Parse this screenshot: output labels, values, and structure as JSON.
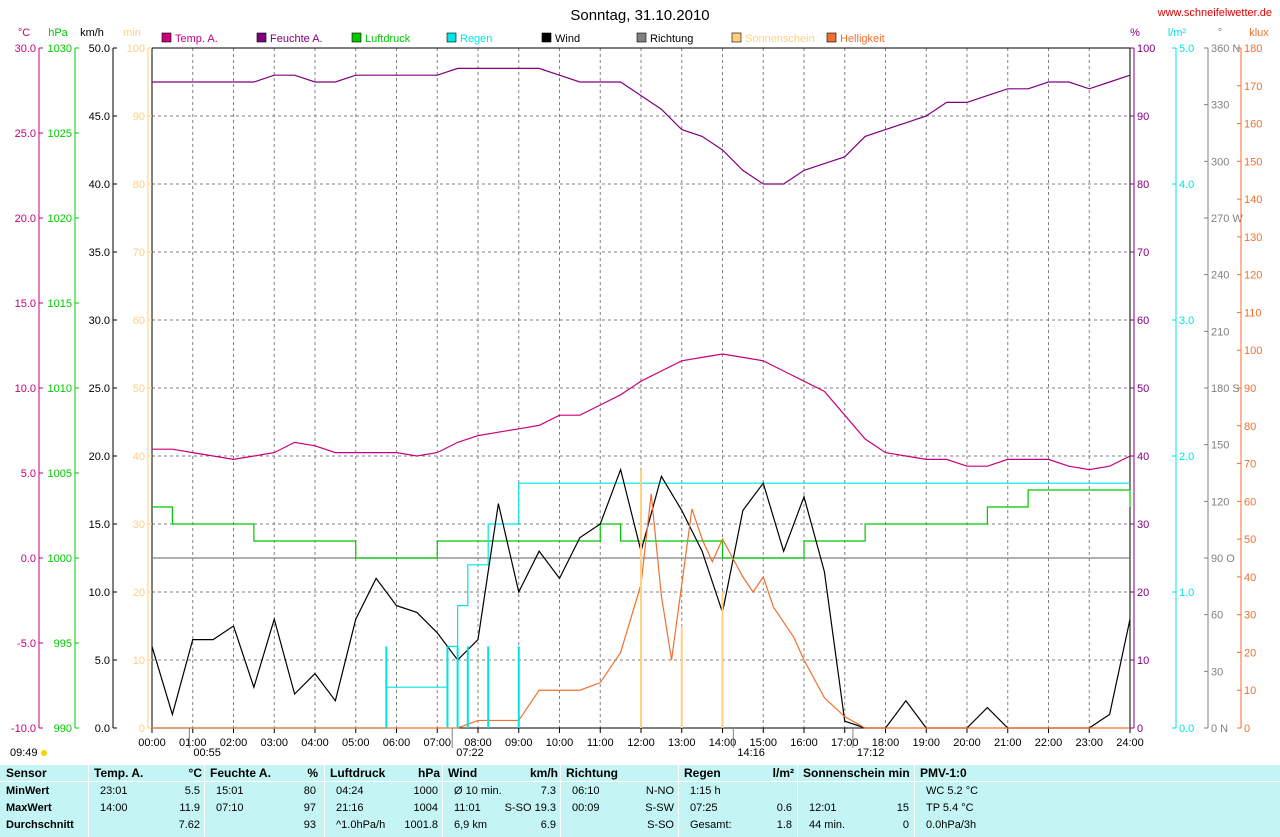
{
  "title": "Sonntag, 31.10.2010",
  "site": "www.schneifelwetter.de",
  "colors": {
    "temp": "#c8007c",
    "humidity": "#800080",
    "pressure": "#00c800",
    "rain": "#00e4e4",
    "wind": "#000000",
    "direction": "#808080",
    "sunshine": "#ffd080",
    "brightness": "#f07030",
    "grid": "#808080"
  },
  "axis_units": {
    "temp": "°C",
    "pressure": "hPa",
    "wind": "km/h",
    "sunmin": "min",
    "humidity": "%",
    "rain": "l/m²",
    "direction": "°",
    "brightness": "klux"
  },
  "legend": [
    {
      "label": "Temp. A.",
      "color": "#c8007c"
    },
    {
      "label": "Feuchte A.",
      "color": "#800080"
    },
    {
      "label": "Luftdruck",
      "color": "#00c800"
    },
    {
      "label": "Regen",
      "color": "#00e4e4"
    },
    {
      "label": "Wind",
      "color": "#000000"
    },
    {
      "label": "Richtung",
      "color": "#808080"
    },
    {
      "label": "Sonnenschein",
      "color": "#ffd080"
    },
    {
      "label": "Helligkeit",
      "color": "#f07030"
    }
  ],
  "time_markers": [
    {
      "label": "09:49",
      "pos": "left"
    },
    {
      "label": "00:55",
      "time": 0.917
    },
    {
      "label": "07:22",
      "time": 7.367
    },
    {
      "label": "14:16",
      "time": 14.267
    },
    {
      "label": "17:12",
      "time": 17.2
    }
  ],
  "chart_data": {
    "type": "line",
    "x_range": [
      0,
      24
    ],
    "x_ticks": [
      "00:00",
      "01:00",
      "02:00",
      "03:00",
      "04:00",
      "05:00",
      "06:00",
      "07:00",
      "08:00",
      "09:00",
      "10:00",
      "11:00",
      "12:00",
      "13:00",
      "14:00",
      "15:00",
      "16:00",
      "17:00",
      "18:00",
      "19:00",
      "20:00",
      "21:00",
      "22:00",
      "23:00",
      "24:00"
    ],
    "axes": {
      "temp": {
        "range": [
          -10,
          30
        ],
        "ticks": [
          "-10.0",
          "-5.0",
          "0.0",
          "5.0",
          "10.0",
          "15.0",
          "20.0",
          "25.0",
          "30.0"
        ]
      },
      "pressure": {
        "range": [
          990,
          1030
        ],
        "ticks": [
          "990",
          "995",
          "1000",
          "1005",
          "1010",
          "1015",
          "1020",
          "1025",
          "1030"
        ]
      },
      "wind": {
        "range": [
          0,
          50
        ],
        "ticks": [
          "0.0",
          "5.0",
          "10.0",
          "15.0",
          "20.0",
          "25.0",
          "30.0",
          "35.0",
          "40.0",
          "45.0",
          "50.0"
        ]
      },
      "sunmin": {
        "range": [
          0,
          100
        ],
        "ticks": [
          "0",
          "10",
          "20",
          "30",
          "40",
          "50",
          "60",
          "70",
          "80",
          "90",
          "100"
        ]
      },
      "humidity": {
        "range": [
          0,
          100
        ],
        "ticks": [
          "0",
          "10",
          "20",
          "30",
          "40",
          "50",
          "60",
          "70",
          "80",
          "90",
          "100"
        ]
      },
      "rain": {
        "range": [
          0,
          5
        ],
        "ticks": [
          "0.0",
          "1.0",
          "2.0",
          "3.0",
          "4.0",
          "5.0"
        ]
      },
      "direction": {
        "range": [
          0,
          360
        ],
        "ticks": [
          "0 N",
          "30",
          "60",
          "90 O",
          "120",
          "150",
          "180 S",
          "210",
          "240",
          "270 W",
          "300",
          "330",
          "360 N"
        ]
      },
      "brightness": {
        "range": [
          0,
          180
        ],
        "ticks": [
          "0",
          "10",
          "20",
          "30",
          "40",
          "50",
          "60",
          "70",
          "80",
          "90",
          "100",
          "110",
          "120",
          "130",
          "140",
          "150",
          "160",
          "170",
          "180"
        ]
      }
    },
    "series": [
      {
        "name": "Temp. A.",
        "axis": "humidity",
        "x": [
          0,
          0.5,
          1,
          1.5,
          2,
          2.5,
          3,
          3.5,
          4,
          4.5,
          5,
          5.5,
          6,
          6.5,
          7,
          7.5,
          8,
          8.5,
          9,
          9.5,
          10,
          10.5,
          11,
          11.5,
          12,
          12.5,
          13,
          13.5,
          14,
          14.5,
          15,
          15.5,
          16,
          16.5,
          17,
          17.5,
          18,
          18.5,
          19,
          19.5,
          20,
          20.5,
          21,
          21.5,
          22,
          22.5,
          23,
          23.5,
          24
        ],
        "y": [
          41,
          41,
          40.5,
          40,
          39.5,
          40,
          40.5,
          42,
          41.5,
          40.5,
          40.5,
          40.5,
          40.5,
          40,
          40.5,
          42,
          43,
          43.5,
          44,
          44.5,
          46,
          46,
          47.5,
          49,
          51,
          52.5,
          54,
          54.5,
          55,
          54.5,
          54,
          52.5,
          51,
          49.5,
          46,
          42.5,
          40.5,
          40,
          39.5,
          39.5,
          38.5,
          38.5,
          39.5,
          39.5,
          39.5,
          38.5,
          38,
          38.5,
          40
        ]
      },
      {
        "name": "Feuchte A.",
        "axis": "humidity",
        "x": [
          0,
          0.5,
          1,
          1.5,
          2,
          2.5,
          3,
          3.5,
          4,
          4.5,
          5,
          5.5,
          6,
          6.5,
          7,
          7.5,
          8,
          8.5,
          9,
          9.5,
          10,
          10.5,
          11,
          11.5,
          12,
          12.5,
          13,
          13.5,
          14,
          14.5,
          15,
          15.5,
          16,
          16.5,
          17,
          17.5,
          18,
          18.5,
          19,
          19.5,
          20,
          20.5,
          21,
          21.5,
          22,
          22.5,
          23,
          23.5,
          24
        ],
        "y": [
          95,
          95,
          95,
          95,
          95,
          95,
          96,
          96,
          95,
          95,
          96,
          96,
          96,
          96,
          96,
          97,
          97,
          97,
          97,
          97,
          96,
          95,
          95,
          95,
          93,
          91,
          88,
          87,
          85,
          82,
          80,
          80,
          82,
          83,
          84,
          87,
          88,
          89,
          90,
          92,
          92,
          93,
          94,
          94,
          95,
          95,
          94,
          95,
          96
        ]
      },
      {
        "name": "Luftdruck",
        "axis": "pressure",
        "x": [
          0,
          0.5,
          1,
          1.5,
          2,
          2.5,
          3,
          3.5,
          4,
          4.5,
          5,
          5.5,
          6,
          6.5,
          7,
          7.5,
          8,
          8.5,
          9,
          9.5,
          10,
          10.5,
          11,
          11.5,
          12,
          12.5,
          13,
          13.5,
          14,
          14.5,
          15,
          15.5,
          16,
          16.5,
          17,
          17.5,
          18,
          18.5,
          19,
          19.5,
          20,
          20.5,
          21,
          21.5,
          22,
          22.5,
          23,
          23.5,
          24
        ],
        "y": [
          1003,
          1002,
          1002,
          1002,
          1002,
          1001,
          1001,
          1001,
          1001,
          1001,
          1000,
          1000,
          1000,
          1000,
          1001,
          1001,
          1001,
          1001,
          1001,
          1001,
          1001,
          1001,
          1002,
          1001,
          1001,
          1001,
          1001,
          1001,
          1000,
          1000,
          1000,
          1000,
          1001,
          1001,
          1001,
          1002,
          1002,
          1002,
          1002,
          1002,
          1002,
          1003,
          1003,
          1004,
          1004,
          1004,
          1004,
          1004,
          1003
        ]
      },
      {
        "name": "Regen",
        "axis": "rain",
        "x": [
          0,
          5.5,
          5.75,
          7.0,
          7.25,
          7.5,
          7.75,
          8.0,
          8.25,
          8.75,
          9.0,
          10,
          12,
          16,
          20,
          24
        ],
        "y": [
          0,
          0,
          0.3,
          0.3,
          0.6,
          0.9,
          1.2,
          1.2,
          1.5,
          1.5,
          1.8,
          1.8,
          1.8,
          1.8,
          1.8,
          1.8
        ]
      },
      {
        "name": "Wind",
        "axis": "wind",
        "x": [
          0,
          0.5,
          1,
          1.5,
          2,
          2.5,
          3,
          3.5,
          4,
          4.5,
          5,
          5.5,
          6,
          6.5,
          7,
          7.5,
          8,
          8.5,
          9,
          9.5,
          10,
          10.5,
          11,
          11.5,
          12,
          12.5,
          13,
          13.5,
          14,
          14.5,
          15,
          15.5,
          16,
          16.5,
          17,
          17.5,
          18,
          18.5,
          19,
          19.5,
          20,
          20.5,
          21,
          21.5,
          22,
          22.5,
          23,
          23.5,
          24
        ],
        "y": [
          6,
          1,
          6.5,
          6.5,
          7.5,
          3,
          8,
          2.5,
          4,
          2,
          8,
          11,
          9,
          8.5,
          7,
          5,
          6.5,
          16.5,
          10,
          13,
          11,
          14,
          15,
          19,
          13,
          18.5,
          16,
          13,
          8.5,
          16,
          18,
          13,
          17,
          11.5,
          0.5,
          0,
          0,
          2,
          0,
          0,
          0,
          1.5,
          0,
          0,
          0,
          0,
          0,
          1,
          8
        ]
      },
      {
        "name": "Helligkeit",
        "axis": "brightness",
        "x": [
          0,
          7.5,
          8,
          8.5,
          9,
          9.5,
          10,
          10.5,
          11,
          11.5,
          12,
          12.25,
          12.5,
          12.75,
          13,
          13.25,
          13.5,
          13.75,
          14,
          14.25,
          14.5,
          14.75,
          15,
          15.25,
          15.5,
          15.75,
          16,
          16.5,
          17,
          17.5,
          18,
          24
        ],
        "y": [
          0,
          0,
          2,
          2,
          2,
          10,
          10,
          10,
          12,
          20,
          38,
          62,
          35,
          18,
          38,
          58,
          50,
          44,
          50,
          45,
          40,
          36,
          40,
          32,
          28,
          24,
          18,
          8,
          3,
          0,
          0,
          0
        ]
      },
      {
        "name": "Sonnenschein",
        "axis": "sunmin",
        "x": [
          12.0,
          13.0,
          14.0
        ],
        "y": [
          38,
          15,
          20
        ]
      }
    ]
  },
  "stats": {
    "headers": [
      {
        "label": "Sensor",
        "unit": ""
      },
      {
        "label": "Temp. A.",
        "unit": "°C"
      },
      {
        "label": "Feuchte A.",
        "unit": "%"
      },
      {
        "label": "Luftdruck",
        "unit": "hPa"
      },
      {
        "label": "Wind",
        "unit": "km/h"
      },
      {
        "label": "Richtung",
        "unit": ""
      },
      {
        "label": "Regen",
        "unit": "l/m²"
      },
      {
        "label": "Sonnenschein min",
        "unit": ""
      },
      {
        "label": "PMV-1:0",
        "unit": ""
      }
    ],
    "rows": [
      {
        "label": "MinWert",
        "cells": [
          [
            "23:01",
            "5.5"
          ],
          [
            "15:01",
            "80"
          ],
          [
            "04:24",
            "1000"
          ],
          [
            "Ø 10 min.",
            "7.3"
          ],
          [
            "06:10",
            "N-NO"
          ],
          [
            "1:15 h",
            ""
          ],
          [
            "",
            ""
          ],
          [
            "WC 5.2 °C",
            ""
          ]
        ]
      },
      {
        "label": "MaxWert",
        "cells": [
          [
            "14:00",
            "11.9"
          ],
          [
            "07:10",
            "97"
          ],
          [
            "21:16",
            "1004"
          ],
          [
            "11:01",
            "S-SO 19.3"
          ],
          [
            "00:09",
            "S-SW"
          ],
          [
            "07:25",
            "0.6"
          ],
          [
            "12:01",
            "15"
          ],
          [
            "TP 5.4 °C",
            ""
          ]
        ]
      },
      {
        "label": "Durchschnitt",
        "cells": [
          [
            "",
            "7.62"
          ],
          [
            "",
            "93"
          ],
          [
            "^1.0hPa/h",
            "1001.8"
          ],
          [
            "6,9 km",
            "6.9"
          ],
          [
            "",
            "S-SO"
          ],
          [
            "Gesamt:",
            "1.8"
          ],
          [
            "44 min.",
            "0"
          ],
          [
            "0.0hPa/3h",
            ""
          ]
        ]
      }
    ]
  }
}
